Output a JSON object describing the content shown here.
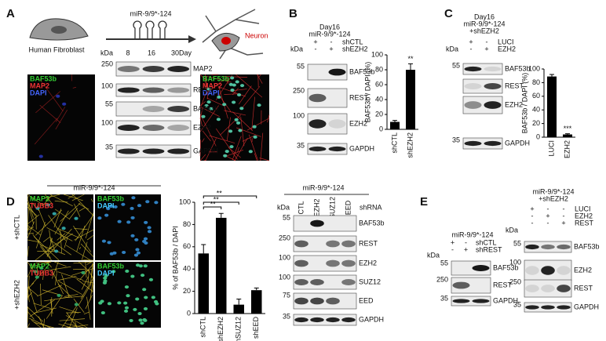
{
  "panels": {
    "a": {
      "label": "A",
      "cell_start": "Human Fibroblast",
      "treatment": "miR-9/9*-124",
      "cell_end": "Neuron",
      "left_image_stains": [
        "BAF53b",
        "MAP2",
        "DAPI"
      ],
      "right_image_stains": [
        "BAF53b",
        "MAP2",
        "DAPI"
      ],
      "blot": {
        "kda_header": "kDa",
        "lanes": [
          "8",
          "16",
          "30"
        ],
        "lane_unit": "Day",
        "rows": [
          {
            "kda": "250",
            "protein": "MAP2"
          },
          {
            "kda": "100",
            "protein": "REST"
          },
          {
            "kda": "55",
            "protein": "BAF53b"
          },
          {
            "kda": "100",
            "protein": "EZH2"
          },
          {
            "kda": "35",
            "protein": "GAPDH"
          }
        ]
      }
    },
    "b": {
      "label": "B",
      "header": [
        "Day16",
        "miR-9/9*-124"
      ],
      "blot": {
        "kda_header": "kDa",
        "sign_rows": [
          {
            "name": "shCTL",
            "signs": [
              "+",
              "-"
            ]
          },
          {
            "name": "shEZH2",
            "signs": [
              "-",
              "+"
            ]
          }
        ],
        "rows": [
          {
            "kda": "55",
            "protein": "BAF53b"
          },
          {
            "kda": "250",
            "protein": "REST"
          },
          {
            "kda": "100",
            "protein": "EZH2"
          },
          {
            "kda": "35",
            "protein": "GAPDH"
          }
        ]
      }
    },
    "c": {
      "label": "C",
      "header": [
        "Day16",
        "miR-9/9*-124",
        "+shEZH2"
      ],
      "blot": {
        "kda_header": "kDa",
        "sign_rows": [
          {
            "name": "LUCI",
            "signs": [
              "+",
              "-"
            ]
          },
          {
            "name": "EZH2",
            "signs": [
              "-",
              "+"
            ]
          }
        ],
        "rows": [
          {
            "kda": "55",
            "protein": "BAF53b"
          },
          {
            "kda": "",
            "protein": "REST"
          },
          {
            "kda": "",
            "protein": "EZH2"
          },
          {
            "kda": "35",
            "protein": "GAPDH"
          }
        ]
      }
    },
    "d": {
      "label": "D",
      "image_header": "miR-9/9*-124",
      "row_labels": [
        "+shCTL",
        "+shEZH2"
      ],
      "left_stains": [
        "MAP2",
        "TUBB3"
      ],
      "right_stains": [
        "BAF53b",
        "DAPI"
      ],
      "blot": {
        "header": "miR-9/9*-124",
        "kda_header": "kDa",
        "lanes": [
          "CTL",
          "EZH2",
          "SUZ12",
          "EED"
        ],
        "lane_unit": "shRNA",
        "rows": [
          {
            "kda": "55",
            "protein": "BAF53b"
          },
          {
            "kda": "250",
            "protein": "REST"
          },
          {
            "kda": "100",
            "protein": "EZH2"
          },
          {
            "kda": "100",
            "protein": "SUZ12"
          },
          {
            "kda": "75",
            "protein": "EED"
          },
          {
            "kda": "35",
            "protein": "GAPDH"
          }
        ]
      }
    },
    "e": {
      "label": "E",
      "blot1": {
        "header": [
          "miR-9/9*-124"
        ],
        "kda_header": "kDa",
        "sign_rows": [
          {
            "name": "shCTL",
            "signs": [
              "+",
              "-"
            ]
          },
          {
            "name": "shREST",
            "signs": [
              "-",
              "+"
            ]
          }
        ],
        "rows": [
          {
            "kda": "55",
            "protein": "BAF53b"
          },
          {
            "kda": "250",
            "protein": "REST"
          },
          {
            "kda": "35",
            "protein": "GAPDH"
          }
        ]
      },
      "blot2": {
        "header": [
          "miR-9/9*-124",
          "+shEZH2"
        ],
        "kda_header": "kDa",
        "sign_rows": [
          {
            "name": "LUCI",
            "signs": [
              "+",
              "-",
              "-"
            ]
          },
          {
            "name": "EZH2",
            "signs": [
              "-",
              "+",
              "-"
            ]
          },
          {
            "name": "REST",
            "signs": [
              "-",
              "-",
              "+"
            ]
          }
        ],
        "rows": [
          {
            "kda": "55",
            "protein": "BAF53b"
          },
          {
            "kda": "100",
            "protein": "EZH2"
          },
          {
            "kda": "250",
            "protein": "REST"
          },
          {
            "kda": "35",
            "protein": "GAPDH"
          }
        ]
      }
    }
  },
  "chart_data": [
    {
      "type": "bar",
      "categories": [
        "shCTL",
        "shEZH2"
      ],
      "values": [
        10,
        80
      ],
      "errors": [
        2,
        8
      ],
      "annotations": [
        "**"
      ],
      "ylabel": "BAF53b / DAPI (%)",
      "color": "#000000",
      "ylim": [
        0,
        100
      ],
      "yticks": [
        0,
        20,
        40,
        60,
        80,
        100
      ]
    },
    {
      "type": "bar",
      "categories": [
        "LUCI",
        "EZH2"
      ],
      "values": [
        89,
        4
      ],
      "errors": [
        3,
        1
      ],
      "annotations": [
        "***"
      ],
      "ylabel": "BAF53b / DAPI (%)",
      "color": "#000000",
      "ylim": [
        0,
        100
      ],
      "yticks": [
        0,
        20,
        40,
        60,
        80,
        100
      ]
    },
    {
      "type": "bar",
      "categories": [
        "shCTL",
        "shEZH2",
        "shSUZ12",
        "shEED"
      ],
      "values": [
        54,
        86,
        8,
        21
      ],
      "errors": [
        8,
        4,
        5,
        2
      ],
      "annotations": [
        "**",
        "**",
        "**"
      ],
      "ylabel": "% of BAF53b / DAPI",
      "color": "#000000",
      "ylim": [
        0,
        100
      ],
      "yticks": [
        0,
        20,
        40,
        60,
        80,
        100
      ]
    }
  ]
}
